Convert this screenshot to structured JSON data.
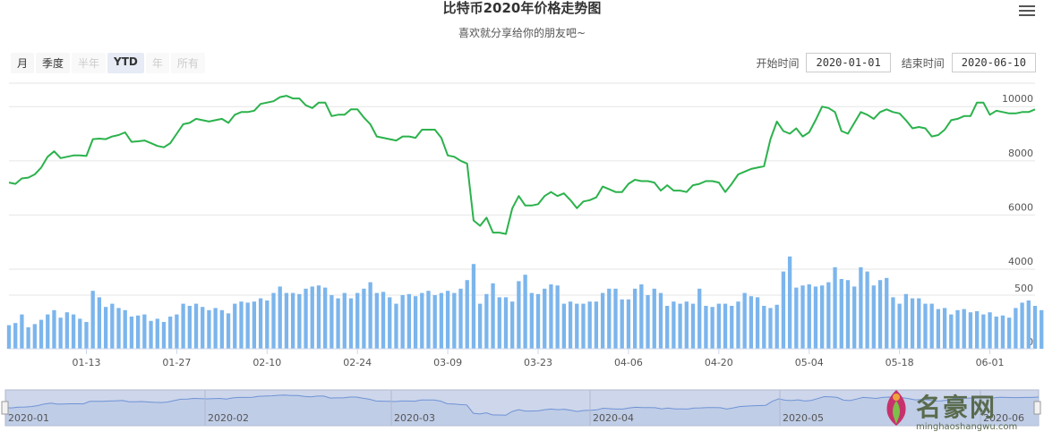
{
  "title": "比特币2020年价格走势图",
  "subtitle": "喜欢就分享给你的朋友吧~",
  "menu_icon": "hamburger-menu-icon",
  "range_buttons": [
    {
      "label": "月",
      "state": "normal"
    },
    {
      "label": "季度",
      "state": "normal"
    },
    {
      "label": "半年",
      "state": "disabled"
    },
    {
      "label": "YTD",
      "state": "active"
    },
    {
      "label": "年",
      "state": "disabled"
    },
    {
      "label": "所有",
      "state": "disabled"
    }
  ],
  "date_range": {
    "start_label": "开始时间",
    "start_value": "2020-01-01",
    "end_label": "结束时间",
    "end_value": "2020-06-10"
  },
  "watermark": {
    "text": "名豪网",
    "sub": "minghaoshangwu.com"
  },
  "chart_data": {
    "type": "line",
    "price": {
      "y_ticks": [
        4000,
        6000,
        8000,
        10000
      ],
      "ylim": [
        4000,
        10800
      ],
      "values": [
        7200,
        7150,
        7350,
        7380,
        7500,
        7750,
        8150,
        8350,
        8100,
        8150,
        8200,
        8200,
        8180,
        8800,
        8820,
        8800,
        8900,
        8950,
        9050,
        8700,
        8720,
        8750,
        8650,
        8550,
        8500,
        8650,
        9000,
        9350,
        9400,
        9550,
        9500,
        9450,
        9500,
        9550,
        9400,
        9700,
        9800,
        9800,
        9850,
        10100,
        10150,
        10200,
        10350,
        10400,
        10300,
        10300,
        10050,
        9950,
        10150,
        10150,
        9650,
        9700,
        9700,
        9900,
        9900,
        9600,
        9350,
        8900,
        8850,
        8800,
        8750,
        8900,
        8900,
        8850,
        9150,
        9150,
        9150,
        8850,
        8200,
        8150,
        8000,
        7900,
        5800,
        5600,
        5900,
        5350,
        5350,
        5300,
        6250,
        6700,
        6350,
        6350,
        6400,
        6700,
        6850,
        6700,
        6800,
        6550,
        6250,
        6500,
        6550,
        6650,
        7050,
        6950,
        6850,
        6850,
        7150,
        7300,
        7250,
        7250,
        7200,
        6900,
        7100,
        6900,
        6900,
        6850,
        7100,
        7150,
        7250,
        7250,
        7200,
        6850,
        7150,
        7500,
        7600,
        7700,
        7750,
        7800,
        8800,
        9450,
        9100,
        9000,
        9200,
        8900,
        9050,
        9500,
        10000,
        9950,
        9800,
        9100,
        9000,
        9400,
        9800,
        9700,
        9550,
        9800,
        9900,
        9800,
        9750,
        9500,
        9200,
        9250,
        9200,
        8900,
        8950,
        9150,
        9500,
        9550,
        9650,
        9650,
        10150,
        10150,
        9700,
        9850,
        9800,
        9750,
        9750,
        9800,
        9800,
        9900
      ]
    },
    "volume": {
      "y_ticks": [
        0,
        500
      ],
      "ylim": [
        0,
        750
      ],
      "values": [
        220,
        240,
        320,
        200,
        230,
        270,
        320,
        360,
        290,
        340,
        320,
        280,
        250,
        540,
        480,
        390,
        420,
        380,
        360,
        300,
        310,
        320,
        260,
        280,
        250,
        300,
        320,
        420,
        400,
        420,
        390,
        360,
        380,
        360,
        330,
        420,
        440,
        430,
        440,
        470,
        450,
        520,
        580,
        520,
        520,
        510,
        560,
        580,
        590,
        570,
        500,
        470,
        520,
        470,
        520,
        560,
        620,
        520,
        530,
        480,
        420,
        500,
        510,
        490,
        520,
        540,
        500,
        520,
        540,
        520,
        560,
        640,
        790,
        420,
        510,
        610,
        480,
        480,
        440,
        630,
        690,
        520,
        510,
        560,
        600,
        590,
        420,
        440,
        420,
        420,
        440,
        440,
        520,
        560,
        560,
        460,
        460,
        560,
        600,
        500,
        560,
        520,
        400,
        440,
        420,
        440,
        420,
        560,
        400,
        390,
        420,
        420,
        400,
        440,
        520,
        490,
        480,
        400,
        380,
        410,
        720,
        860,
        570,
        590,
        600,
        580,
        590,
        620,
        760,
        650,
        640,
        580,
        760,
        720,
        590,
        640,
        660,
        480,
        420,
        510,
        470,
        470,
        420,
        420,
        370,
        380,
        320,
        360,
        370,
        340,
        350,
        320,
        340,
        300,
        310,
        290,
        380,
        430,
        450,
        400,
        360,
        390,
        400
      ]
    },
    "x_ticks": [
      "01-13",
      "01-27",
      "02-10",
      "02-24",
      "03-09",
      "03-23",
      "04-06",
      "04-20",
      "05-04",
      "05-18",
      "06-01"
    ],
    "navigator_labels": [
      "2020-01",
      "2020-02",
      "2020-03",
      "2020-04",
      "2020-05",
      "2020-06"
    ],
    "line_color": "#2bb24c",
    "bar_color": "#7cb5ec",
    "nav_fill": "#cdd6ea"
  }
}
